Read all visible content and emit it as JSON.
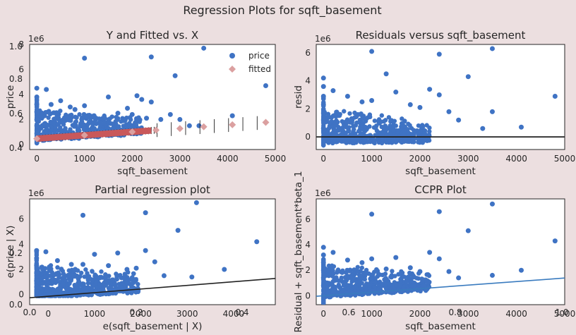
{
  "figure_title": "Regression Plots for sqft_basement",
  "colors": {
    "background": "#ecdfe0",
    "points": "#3f73c4",
    "fitted": "#c9585a",
    "fitted_marker": "#dba0a0",
    "line": "#222222",
    "ccpr_line": "#3a7bbf"
  },
  "stray_ticks": {
    "fig_y": [
      "1.0",
      "0.8",
      "0.6",
      "0.4",
      "0.2",
      "0.0"
    ],
    "fig_x": [
      "0.0",
      "0.2",
      "0.4",
      "0.6",
      "0.8",
      "1.0"
    ]
  },
  "chart_data": [
    {
      "type": "scatter",
      "title": "Y and Fitted vs. X",
      "xlabel": "sqft_basement",
      "ylabel": "price",
      "y_offset_label": "1e6",
      "xlim": [
        -150,
        5000
      ],
      "ylim": [
        -0.4,
        8.0
      ],
      "xticks": [
        {
          "v": 0,
          "t": "0"
        },
        {
          "v": 1000,
          "t": "1000"
        },
        {
          "v": 2000,
          "t": "2000"
        },
        {
          "v": 3000,
          "t": "3000"
        },
        {
          "v": 4000,
          "t": "4000"
        },
        {
          "v": 5000,
          "t": "5000"
        }
      ],
      "yticks": [
        {
          "v": 0,
          "t": "0"
        },
        {
          "v": 2,
          "t": "2"
        },
        {
          "v": 4,
          "t": "4"
        },
        {
          "v": 6,
          "t": "6"
        },
        {
          "v": 8,
          "t": "8"
        }
      ],
      "legend": {
        "position": "top-right",
        "entries": [
          "price",
          "fitted"
        ]
      },
      "series": [
        {
          "name": "price",
          "points": [
            [
              0,
              4.5
            ],
            [
              0,
              3.8
            ],
            [
              0,
              3.2
            ],
            [
              0,
              2.6
            ],
            [
              0,
              2.0
            ],
            [
              0,
              1.5
            ],
            [
              0,
              0.9
            ],
            [
              200,
              4.4
            ],
            [
              300,
              3.2
            ],
            [
              500,
              3.5
            ],
            [
              700,
              3.0
            ],
            [
              800,
              2.8
            ],
            [
              1000,
              6.9
            ],
            [
              1000,
              3.1
            ],
            [
              1200,
              2.3
            ],
            [
              1500,
              3.8
            ],
            [
              1700,
              2.5
            ],
            [
              1900,
              2.9
            ],
            [
              2000,
              2.4
            ],
            [
              2100,
              3.9
            ],
            [
              2200,
              3.6
            ],
            [
              2300,
              2.1
            ],
            [
              2400,
              7.0
            ],
            [
              2400,
              3.4
            ],
            [
              2600,
              2.0
            ],
            [
              2800,
              2.4
            ],
            [
              3000,
              2.0
            ],
            [
              3500,
              7.7
            ],
            [
              3400,
              1.5
            ],
            [
              4100,
              2.3
            ],
            [
              4800,
              4.7
            ],
            [
              2900,
              5.5
            ],
            [
              3200,
              1.5
            ]
          ]
        },
        {
          "name": "fitted",
          "points": [
            [
              0,
              0.47
            ],
            [
              1000,
              0.74
            ],
            [
              2000,
              1.01
            ],
            [
              2500,
              1.15
            ],
            [
              3000,
              1.28
            ],
            [
              3500,
              1.42
            ],
            [
              4100,
              1.58
            ],
            [
              4800,
              1.77
            ]
          ]
        }
      ],
      "fit": {
        "intercept": 0.47,
        "slope_per_1000": 0.27
      }
    },
    {
      "type": "scatter",
      "title": "Residuals versus sqft_basement",
      "xlabel": "sqft_basement",
      "ylabel": "resid",
      "y_offset_label": "1e6",
      "xlim": [
        -150,
        5000
      ],
      "ylim": [
        -0.9,
        6.6
      ],
      "xticks": [
        {
          "v": 0,
          "t": "0"
        },
        {
          "v": 1000,
          "t": "1000"
        },
        {
          "v": 2000,
          "t": "2000"
        },
        {
          "v": 3000,
          "t": "3000"
        },
        {
          "v": 4000,
          "t": "4000"
        },
        {
          "v": 5000,
          "t": "5000"
        }
      ],
      "yticks": [
        {
          "v": 0,
          "t": "0"
        },
        {
          "v": 2,
          "t": "2"
        },
        {
          "v": 4,
          "t": "4"
        },
        {
          "v": 6,
          "t": "6"
        }
      ],
      "series": [
        {
          "name": "",
          "points": [
            [
              0,
              4.2
            ],
            [
              0,
              3.6
            ],
            [
              0,
              2.9
            ],
            [
              0,
              2.3
            ],
            [
              0,
              1.7
            ],
            [
              0,
              1.2
            ],
            [
              0,
              0.6
            ],
            [
              200,
              3.3
            ],
            [
              500,
              2.9
            ],
            [
              800,
              2.5
            ],
            [
              1000,
              6.1
            ],
            [
              1000,
              2.6
            ],
            [
              1300,
              4.5
            ],
            [
              1500,
              3.2
            ],
            [
              1800,
              2.3
            ],
            [
              2000,
              2.1
            ],
            [
              2200,
              3.4
            ],
            [
              2400,
              5.9
            ],
            [
              2400,
              3.0
            ],
            [
              2600,
              1.8
            ],
            [
              2800,
              1.2
            ],
            [
              3000,
              4.3
            ],
            [
              3500,
              6.3
            ],
            [
              3500,
              1.8
            ],
            [
              3300,
              0.6
            ],
            [
              4100,
              0.7
            ],
            [
              4800,
              2.9
            ]
          ]
        }
      ],
      "zero_line": 0
    },
    {
      "type": "scatter",
      "title": "Partial regression plot",
      "xlabel": "e(sqft_basement | X)",
      "ylabel": "e(price | X)",
      "y_offset_label": "1e6",
      "xlim": [
        -400,
        4900
      ],
      "ylim": [
        -0.8,
        7.6
      ],
      "xticks": [
        {
          "v": 0,
          "t": "0"
        },
        {
          "v": 1000,
          "t": "1000"
        },
        {
          "v": 2000,
          "t": "2000"
        },
        {
          "v": 3000,
          "t": "3000"
        },
        {
          "v": 4000,
          "t": "4000"
        }
      ],
      "yticks": [
        {
          "v": 0,
          "t": "0"
        },
        {
          "v": 2,
          "t": "2"
        },
        {
          "v": 4,
          "t": "4"
        },
        {
          "v": 6,
          "t": "6"
        }
      ],
      "series": [
        {
          "name": "",
          "points": [
            [
              -250,
              3.5
            ],
            [
              -250,
              2.9
            ],
            [
              -250,
              2.3
            ],
            [
              -250,
              1.7
            ],
            [
              -250,
              1.1
            ],
            [
              -250,
              0.6
            ],
            [
              -50,
              3.4
            ],
            [
              200,
              2.7
            ],
            [
              500,
              2.4
            ],
            [
              750,
              6.3
            ],
            [
              750,
              2.4
            ],
            [
              1000,
              3.2
            ],
            [
              1300,
              2.3
            ],
            [
              1500,
              3.3
            ],
            [
              1700,
              2.0
            ],
            [
              1900,
              2.1
            ],
            [
              2100,
              3.5
            ],
            [
              2100,
              6.5
            ],
            [
              2300,
              2.6
            ],
            [
              2500,
              1.5
            ],
            [
              2800,
              5.1
            ],
            [
              3200,
              7.3
            ],
            [
              3100,
              1.4
            ],
            [
              3800,
              2.0
            ],
            [
              4500,
              4.2
            ]
          ]
        }
      ],
      "fit": {
        "x": [
          -400,
          4900
        ],
        "y": [
          -0.25,
          1.28
        ]
      }
    },
    {
      "type": "scatter",
      "title": "CCPR Plot",
      "xlabel": "sqft_basement",
      "ylabel": "Residual + sqft_basement*beta_1",
      "y_offset_label": "1e6",
      "xlim": [
        -150,
        5000
      ],
      "ylim": [
        -0.7,
        7.6
      ],
      "xticks": [
        {
          "v": 0,
          "t": "0"
        },
        {
          "v": 1000,
          "t": "1000"
        },
        {
          "v": 2000,
          "t": "2000"
        },
        {
          "v": 3000,
          "t": "3000"
        },
        {
          "v": 4000,
          "t": "4000"
        },
        {
          "v": 5000,
          "t": "5000"
        }
      ],
      "yticks": [
        {
          "v": 0,
          "t": "0"
        },
        {
          "v": 2,
          "t": "2"
        },
        {
          "v": 4,
          "t": "4"
        },
        {
          "v": 6,
          "t": "6"
        }
      ],
      "series": [
        {
          "name": "",
          "points": [
            [
              0,
              3.8
            ],
            [
              0,
              3.2
            ],
            [
              0,
              2.6
            ],
            [
              0,
              2.0
            ],
            [
              0,
              1.4
            ],
            [
              0,
              0.8
            ],
            [
              200,
              3.4
            ],
            [
              500,
              2.8
            ],
            [
              800,
              2.6
            ],
            [
              1000,
              6.4
            ],
            [
              1000,
              2.9
            ],
            [
              1300,
              2.1
            ],
            [
              1500,
              3.0
            ],
            [
              1800,
              2.2
            ],
            [
              2000,
              1.9
            ],
            [
              2200,
              3.4
            ],
            [
              2400,
              6.6
            ],
            [
              2400,
              2.9
            ],
            [
              2600,
              1.9
            ],
            [
              2800,
              1.4
            ],
            [
              3000,
              5.1
            ],
            [
              3500,
              7.2
            ],
            [
              3500,
              1.6
            ],
            [
              4100,
              2.0
            ],
            [
              4800,
              4.3
            ]
          ]
        }
      ],
      "fit": {
        "x": [
          -150,
          5000
        ],
        "y": [
          -0.04,
          1.39
        ]
      }
    }
  ]
}
